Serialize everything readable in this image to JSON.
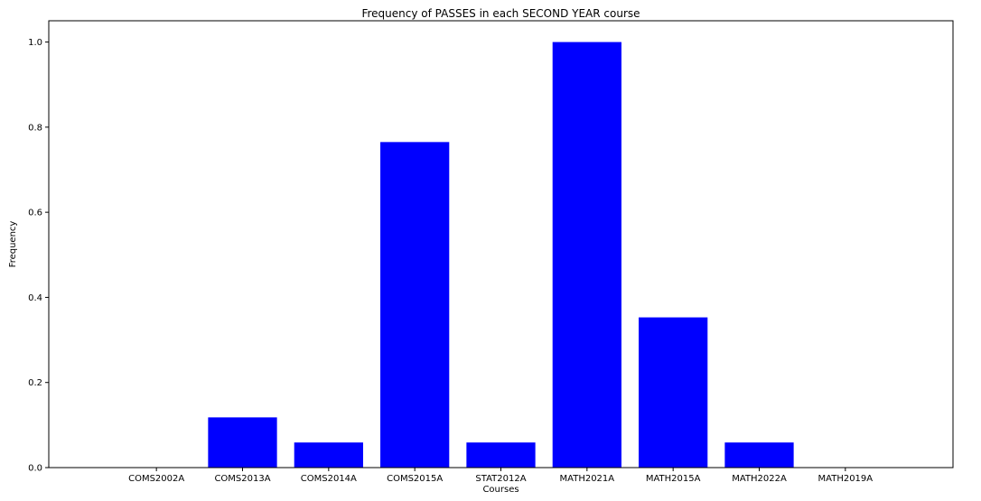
{
  "chart_data": {
    "type": "bar",
    "title": "Frequency of PASSES in each SECOND YEAR course",
    "xlabel": "Courses",
    "ylabel": "Frequency",
    "categories": [
      "COMS2002A",
      "COMS2013A",
      "COMS2014A",
      "COMS2015A",
      "STAT2012A",
      "MATH2021A",
      "MATH2015A",
      "MATH2022A",
      "MATH2019A"
    ],
    "values": [
      0.0,
      0.118,
      0.059,
      0.765,
      0.059,
      1.0,
      0.353,
      0.059,
      0.0
    ],
    "ylim": [
      0,
      1.05
    ],
    "yticks": [
      0.0,
      0.2,
      0.4,
      0.6,
      0.8,
      1.0
    ],
    "ytick_labels": [
      "0.0",
      "0.2",
      "0.4",
      "0.6",
      "0.8",
      "1.0"
    ],
    "bar_color": "#0000ff",
    "grid": false,
    "legend": "none"
  }
}
